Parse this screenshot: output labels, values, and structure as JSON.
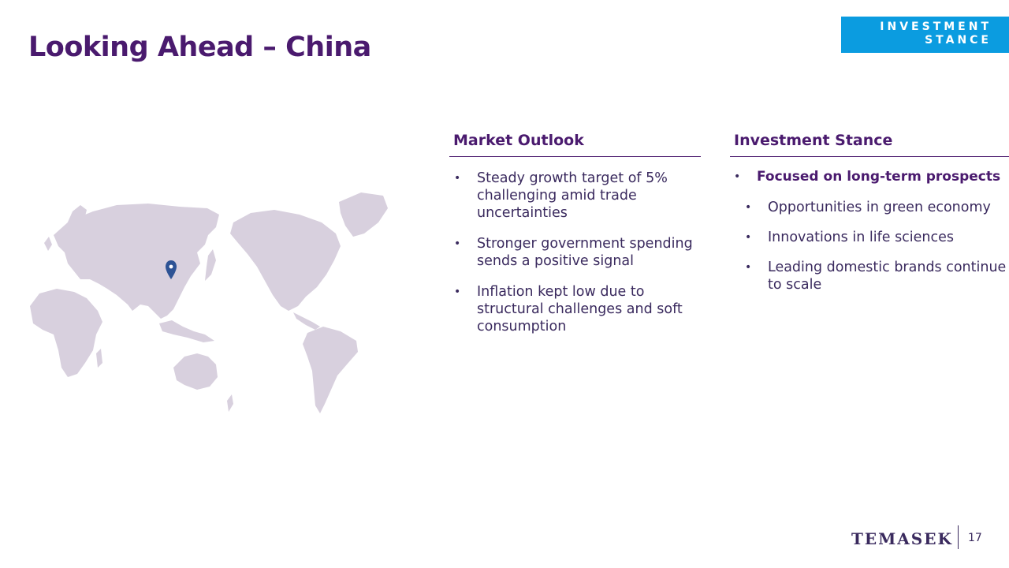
{
  "page": {
    "title": "Looking Ahead – China",
    "section_badge": [
      "INVESTMENT",
      "STANCE"
    ],
    "page_number": "17"
  },
  "market_outlook": {
    "heading": "Market Outlook",
    "bullets": [
      "Steady growth target of 5% challenging amid trade uncertainties",
      "Stronger government spending sends a positive signal",
      "Inflation kept low due to structural challenges and soft consumption"
    ]
  },
  "investment_stance": {
    "heading": "Investment Stance",
    "main_bullet": "Focused on long-term prospects",
    "sub_bullets": [
      "Opportunities in green economy",
      "Innovations in life sciences",
      "Leading domestic brands continue to scale"
    ]
  },
  "map": {
    "icon": "location-pin-icon",
    "land_color": "#d8d0de",
    "pin_color": "#2e5395"
  },
  "footer": {
    "brand": "TEMASEK"
  },
  "colors": {
    "title": "#4a1a6e",
    "badge": "#0b9ce0",
    "text": "#3a2a5e"
  }
}
